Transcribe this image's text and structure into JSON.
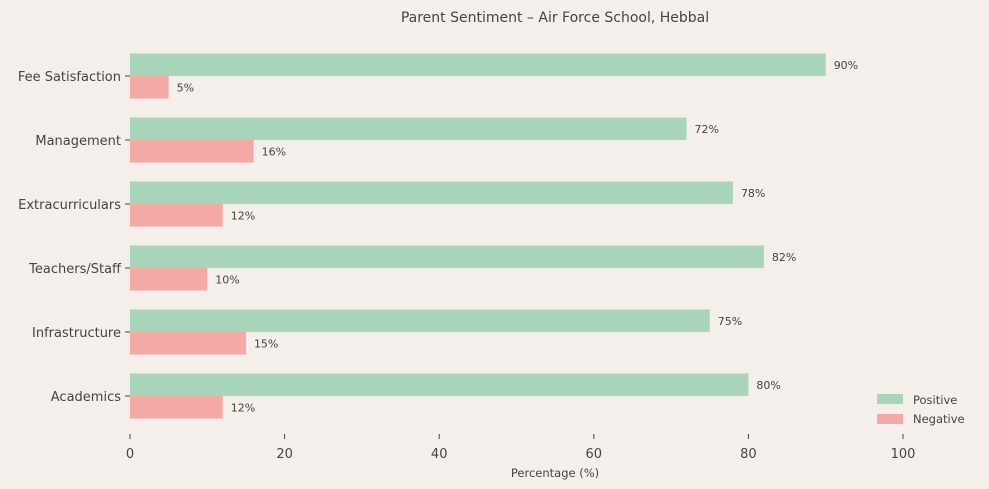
{
  "chart_data": {
    "type": "bar",
    "orientation": "horizontal",
    "title": "Parent Sentiment – Air Force School, Hebbal",
    "xlabel": "Percentage (%)",
    "ylabel": "",
    "categories": [
      "Academics",
      "Infrastructure",
      "Teachers/Staff",
      "Extracurriculars",
      "Management",
      "Fee Satisfaction"
    ],
    "series": [
      {
        "name": "Positive",
        "color": "#a8d5ba",
        "values": [
          80,
          75,
          82,
          78,
          72,
          90
        ],
        "labels": [
          "80%",
          "75%",
          "82%",
          "78%",
          "72%",
          "90%"
        ]
      },
      {
        "name": "Negative",
        "color": "#f5a9a4",
        "values": [
          12,
          15,
          10,
          12,
          16,
          5
        ],
        "labels": [
          "12%",
          "15%",
          "10%",
          "12%",
          "16%",
          "5%"
        ]
      }
    ],
    "xticks": [
      "0",
      "20",
      "40",
      "60",
      "80",
      "100"
    ],
    "xtick_values": [
      0,
      20,
      40,
      60,
      80,
      100
    ],
    "xlim": [
      0,
      110
    ],
    "grid": false,
    "legend": "bottom-right",
    "background": "#f4efeb"
  }
}
